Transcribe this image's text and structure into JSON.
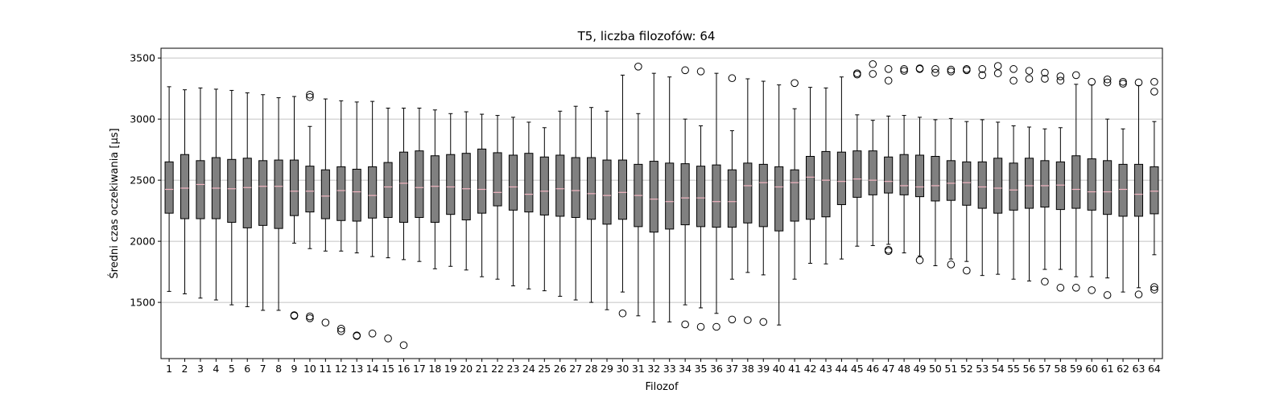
{
  "chart_data": {
    "type": "boxplot",
    "title": "T5, liczba filozofów: 64",
    "xlabel": "Filozof",
    "ylabel": "Średni czas oczekiwania [µs]",
    "ylim": [
      1040,
      3580
    ],
    "yticks": [
      1500,
      2000,
      2500,
      3000,
      3500
    ],
    "grid": "horizontal",
    "colors": {
      "box_fill": "#808080",
      "median": "#f4b6c2"
    },
    "boxes": [
      {
        "label": "1",
        "whislo": 1590,
        "q1": 2230,
        "med": 2425,
        "q3": 2650,
        "whishi": 3265,
        "fliers": []
      },
      {
        "label": "2",
        "whislo": 1570,
        "q1": 2185,
        "med": 2435,
        "q3": 2710,
        "whishi": 3240,
        "fliers": []
      },
      {
        "label": "3",
        "whislo": 1535,
        "q1": 2185,
        "med": 2465,
        "q3": 2660,
        "whishi": 3255,
        "fliers": []
      },
      {
        "label": "4",
        "whislo": 1520,
        "q1": 2185,
        "med": 2435,
        "q3": 2685,
        "whishi": 3245,
        "fliers": []
      },
      {
        "label": "5",
        "whislo": 1480,
        "q1": 2155,
        "med": 2430,
        "q3": 2670,
        "whishi": 3235,
        "fliers": []
      },
      {
        "label": "6",
        "whislo": 1465,
        "q1": 2110,
        "med": 2440,
        "q3": 2680,
        "whishi": 3215,
        "fliers": []
      },
      {
        "label": "7",
        "whislo": 1435,
        "q1": 2130,
        "med": 2450,
        "q3": 2660,
        "whishi": 3200,
        "fliers": []
      },
      {
        "label": "8",
        "whislo": 1435,
        "q1": 2105,
        "med": 2450,
        "q3": 2665,
        "whishi": 3175,
        "fliers": []
      },
      {
        "label": "9",
        "whislo": 1985,
        "q1": 2210,
        "med": 2410,
        "q3": 2665,
        "whishi": 3185,
        "fliers": [
          1395,
          1390
        ]
      },
      {
        "label": "10",
        "whislo": 1940,
        "q1": 2240,
        "med": 2410,
        "q3": 2615,
        "whishi": 2940,
        "fliers": [
          3200,
          3180,
          1385,
          1370
        ]
      },
      {
        "label": "11",
        "whislo": 1920,
        "q1": 2185,
        "med": 2370,
        "q3": 2585,
        "whishi": 3165,
        "fliers": [
          1335
        ]
      },
      {
        "label": "12",
        "whislo": 1920,
        "q1": 2170,
        "med": 2415,
        "q3": 2610,
        "whishi": 3150,
        "fliers": [
          1285,
          1265
        ]
      },
      {
        "label": "13",
        "whislo": 1905,
        "q1": 2165,
        "med": 2405,
        "q3": 2590,
        "whishi": 3140,
        "fliers": [
          1230,
          1225
        ]
      },
      {
        "label": "14",
        "whislo": 1875,
        "q1": 2190,
        "med": 2375,
        "q3": 2610,
        "whishi": 3145,
        "fliers": [
          1245
        ]
      },
      {
        "label": "15",
        "whislo": 1865,
        "q1": 2195,
        "med": 2445,
        "q3": 2645,
        "whishi": 3090,
        "fliers": [
          1205
        ]
      },
      {
        "label": "16",
        "whislo": 1850,
        "q1": 2155,
        "med": 2475,
        "q3": 2730,
        "whishi": 3090,
        "fliers": [
          1150
        ]
      },
      {
        "label": "17",
        "whislo": 1835,
        "q1": 2195,
        "med": 2440,
        "q3": 2740,
        "whishi": 3090,
        "fliers": []
      },
      {
        "label": "18",
        "whislo": 1775,
        "q1": 2155,
        "med": 2450,
        "q3": 2700,
        "whishi": 3075,
        "fliers": []
      },
      {
        "label": "19",
        "whislo": 1795,
        "q1": 2220,
        "med": 2445,
        "q3": 2710,
        "whishi": 3045,
        "fliers": []
      },
      {
        "label": "20",
        "whislo": 1765,
        "q1": 2175,
        "med": 2430,
        "q3": 2720,
        "whishi": 3060,
        "fliers": []
      },
      {
        "label": "21",
        "whislo": 1710,
        "q1": 2230,
        "med": 2425,
        "q3": 2755,
        "whishi": 3040,
        "fliers": []
      },
      {
        "label": "22",
        "whislo": 1690,
        "q1": 2290,
        "med": 2400,
        "q3": 2725,
        "whishi": 3030,
        "fliers": []
      },
      {
        "label": "23",
        "whislo": 1635,
        "q1": 2255,
        "med": 2445,
        "q3": 2705,
        "whishi": 3015,
        "fliers": []
      },
      {
        "label": "24",
        "whislo": 1610,
        "q1": 2240,
        "med": 2385,
        "q3": 2720,
        "whishi": 2975,
        "fliers": []
      },
      {
        "label": "25",
        "whislo": 1595,
        "q1": 2215,
        "med": 2410,
        "q3": 2690,
        "whishi": 2930,
        "fliers": []
      },
      {
        "label": "26",
        "whislo": 1550,
        "q1": 2205,
        "med": 2430,
        "q3": 2705,
        "whishi": 3065,
        "fliers": []
      },
      {
        "label": "27",
        "whislo": 1520,
        "q1": 2195,
        "med": 2415,
        "q3": 2685,
        "whishi": 3105,
        "fliers": []
      },
      {
        "label": "28",
        "whislo": 1500,
        "q1": 2180,
        "med": 2390,
        "q3": 2685,
        "whishi": 3095,
        "fliers": []
      },
      {
        "label": "29",
        "whislo": 1440,
        "q1": 2140,
        "med": 2375,
        "q3": 2665,
        "whishi": 3065,
        "fliers": []
      },
      {
        "label": "30",
        "whislo": 1585,
        "q1": 2180,
        "med": 2400,
        "q3": 2665,
        "whishi": 3360,
        "fliers": [
          1410
        ]
      },
      {
        "label": "31",
        "whislo": 1390,
        "q1": 2120,
        "med": 2375,
        "q3": 2630,
        "whishi": 3045,
        "fliers": [
          3430
        ]
      },
      {
        "label": "32",
        "whislo": 1340,
        "q1": 2075,
        "med": 2345,
        "q3": 2655,
        "whishi": 3375,
        "fliers": []
      },
      {
        "label": "33",
        "whislo": 1340,
        "q1": 2100,
        "med": 2325,
        "q3": 2640,
        "whishi": 3345,
        "fliers": []
      },
      {
        "label": "34",
        "whislo": 1480,
        "q1": 2135,
        "med": 2355,
        "q3": 2635,
        "whishi": 3000,
        "fliers": [
          3400,
          1320
        ]
      },
      {
        "label": "35",
        "whislo": 1455,
        "q1": 2120,
        "med": 2355,
        "q3": 2615,
        "whishi": 2945,
        "fliers": [
          3390,
          1300
        ]
      },
      {
        "label": "36",
        "whislo": 1410,
        "q1": 2115,
        "med": 2325,
        "q3": 2625,
        "whishi": 3375,
        "fliers": [
          1300
        ]
      },
      {
        "label": "37",
        "whislo": 1690,
        "q1": 2115,
        "med": 2325,
        "q3": 2585,
        "whishi": 2905,
        "fliers": [
          3335,
          1360
        ]
      },
      {
        "label": "38",
        "whislo": 1745,
        "q1": 2150,
        "med": 2455,
        "q3": 2640,
        "whishi": 3330,
        "fliers": [
          1355
        ]
      },
      {
        "label": "39",
        "whislo": 1725,
        "q1": 2120,
        "med": 2480,
        "q3": 2630,
        "whishi": 3310,
        "fliers": [
          1340
        ]
      },
      {
        "label": "40",
        "whislo": 1315,
        "q1": 2085,
        "med": 2445,
        "q3": 2610,
        "whishi": 3280,
        "fliers": []
      },
      {
        "label": "41",
        "whislo": 1690,
        "q1": 2165,
        "med": 2480,
        "q3": 2585,
        "whishi": 3085,
        "fliers": [
          3295
        ]
      },
      {
        "label": "42",
        "whislo": 1820,
        "q1": 2180,
        "med": 2525,
        "q3": 2695,
        "whishi": 3260,
        "fliers": []
      },
      {
        "label": "43",
        "whislo": 1815,
        "q1": 2200,
        "med": 2500,
        "q3": 2735,
        "whishi": 3255,
        "fliers": []
      },
      {
        "label": "44",
        "whislo": 1855,
        "q1": 2300,
        "med": 2490,
        "q3": 2730,
        "whishi": 3345,
        "fliers": []
      },
      {
        "label": "45",
        "whislo": 1960,
        "q1": 2360,
        "med": 2510,
        "q3": 2740,
        "whishi": 3035,
        "fliers": [
          3375,
          3365
        ]
      },
      {
        "label": "46",
        "whislo": 1965,
        "q1": 2380,
        "med": 2500,
        "q3": 2740,
        "whishi": 2990,
        "fliers": [
          3450,
          3370
        ]
      },
      {
        "label": "47",
        "whislo": 1975,
        "q1": 2395,
        "med": 2490,
        "q3": 2690,
        "whishi": 3025,
        "fliers": [
          3410,
          3315,
          1930,
          1920
        ]
      },
      {
        "label": "48",
        "whislo": 1905,
        "q1": 2380,
        "med": 2455,
        "q3": 2710,
        "whishi": 3030,
        "fliers": [
          3410,
          3395
        ]
      },
      {
        "label": "49",
        "whislo": 1880,
        "q1": 2365,
        "med": 2445,
        "q3": 2705,
        "whishi": 3015,
        "fliers": [
          3415,
          3410,
          1845
        ]
      },
      {
        "label": "50",
        "whislo": 1800,
        "q1": 2330,
        "med": 2455,
        "q3": 2695,
        "whishi": 2995,
        "fliers": [
          3410,
          3380
        ]
      },
      {
        "label": "51",
        "whislo": 1855,
        "q1": 2335,
        "med": 2475,
        "q3": 2660,
        "whishi": 3005,
        "fliers": [
          3405,
          3390,
          1810
        ]
      },
      {
        "label": "52",
        "whislo": 1835,
        "q1": 2295,
        "med": 2480,
        "q3": 2650,
        "whishi": 2980,
        "fliers": [
          3410,
          3400,
          1760
        ]
      },
      {
        "label": "53",
        "whislo": 1720,
        "q1": 2270,
        "med": 2445,
        "q3": 2650,
        "whishi": 2995,
        "fliers": [
          3410,
          3360
        ]
      },
      {
        "label": "54",
        "whislo": 1730,
        "q1": 2230,
        "med": 2435,
        "q3": 2680,
        "whishi": 2975,
        "fliers": [
          3435,
          3375
        ]
      },
      {
        "label": "55",
        "whislo": 1690,
        "q1": 2255,
        "med": 2420,
        "q3": 2640,
        "whishi": 2945,
        "fliers": [
          3410,
          3315
        ]
      },
      {
        "label": "56",
        "whislo": 1675,
        "q1": 2270,
        "med": 2455,
        "q3": 2680,
        "whishi": 2935,
        "fliers": [
          3395,
          3330
        ]
      },
      {
        "label": "57",
        "whislo": 1770,
        "q1": 2280,
        "med": 2455,
        "q3": 2660,
        "whishi": 2920,
        "fliers": [
          3380,
          3330,
          1670
        ]
      },
      {
        "label": "58",
        "whislo": 1770,
        "q1": 2260,
        "med": 2460,
        "q3": 2650,
        "whishi": 2930,
        "fliers": [
          3350,
          3315,
          1620
        ]
      },
      {
        "label": "59",
        "whislo": 1710,
        "q1": 2270,
        "med": 2425,
        "q3": 2700,
        "whishi": 3285,
        "fliers": [
          3360,
          1620
        ]
      },
      {
        "label": "60",
        "whislo": 1710,
        "q1": 2255,
        "med": 2405,
        "q3": 2675,
        "whishi": 3280,
        "fliers": [
          3305,
          1600
        ]
      },
      {
        "label": "61",
        "whislo": 1700,
        "q1": 2220,
        "med": 2405,
        "q3": 2660,
        "whishi": 3000,
        "fliers": [
          3325,
          3300,
          1560
        ]
      },
      {
        "label": "62",
        "whislo": 1585,
        "q1": 2205,
        "med": 2425,
        "q3": 2630,
        "whishi": 2920,
        "fliers": [
          3305,
          3290
        ]
      },
      {
        "label": "63",
        "whislo": 1620,
        "q1": 2205,
        "med": 2385,
        "q3": 2630,
        "whishi": 3275,
        "fliers": [
          3300,
          1565
        ]
      },
      {
        "label": "64",
        "whislo": 1890,
        "q1": 2225,
        "med": 2410,
        "q3": 2610,
        "whishi": 2980,
        "fliers": [
          3305,
          3225,
          1625,
          1605
        ]
      }
    ]
  }
}
